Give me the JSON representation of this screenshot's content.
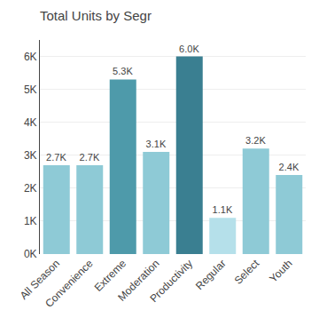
{
  "chart_data": {
    "type": "bar",
    "title": "Total Units by Segr",
    "categories": [
      "All Season",
      "Convenience",
      "Extreme",
      "Moderation",
      "Productivity",
      "Regular",
      "Select",
      "Youth"
    ],
    "values": [
      2700,
      2700,
      5300,
      3100,
      6000,
      1100,
      3200,
      2400
    ],
    "value_labels": [
      "2.7K",
      "2.7K",
      "5.3K",
      "3.1K",
      "6.0K",
      "1.1K",
      "3.2K",
      "2.4K"
    ],
    "data_labels": true,
    "colors": [
      "#8ecad6",
      "#8ecad6",
      "#4e9aaa",
      "#8ecad6",
      "#3a7f91",
      "#b5e0ea",
      "#8ecad6",
      "#8ecad6"
    ],
    "ylim": [
      0,
      6500
    ],
    "yticks": [
      {
        "value": 0,
        "label": "0K"
      },
      {
        "value": 1000,
        "label": "1K"
      },
      {
        "value": 2000,
        "label": "2K"
      },
      {
        "value": 3000,
        "label": "3K"
      },
      {
        "value": 4000,
        "label": "4K"
      },
      {
        "value": 5000,
        "label": "5K"
      },
      {
        "value": 6000,
        "label": "6K"
      }
    ],
    "grid": true
  }
}
